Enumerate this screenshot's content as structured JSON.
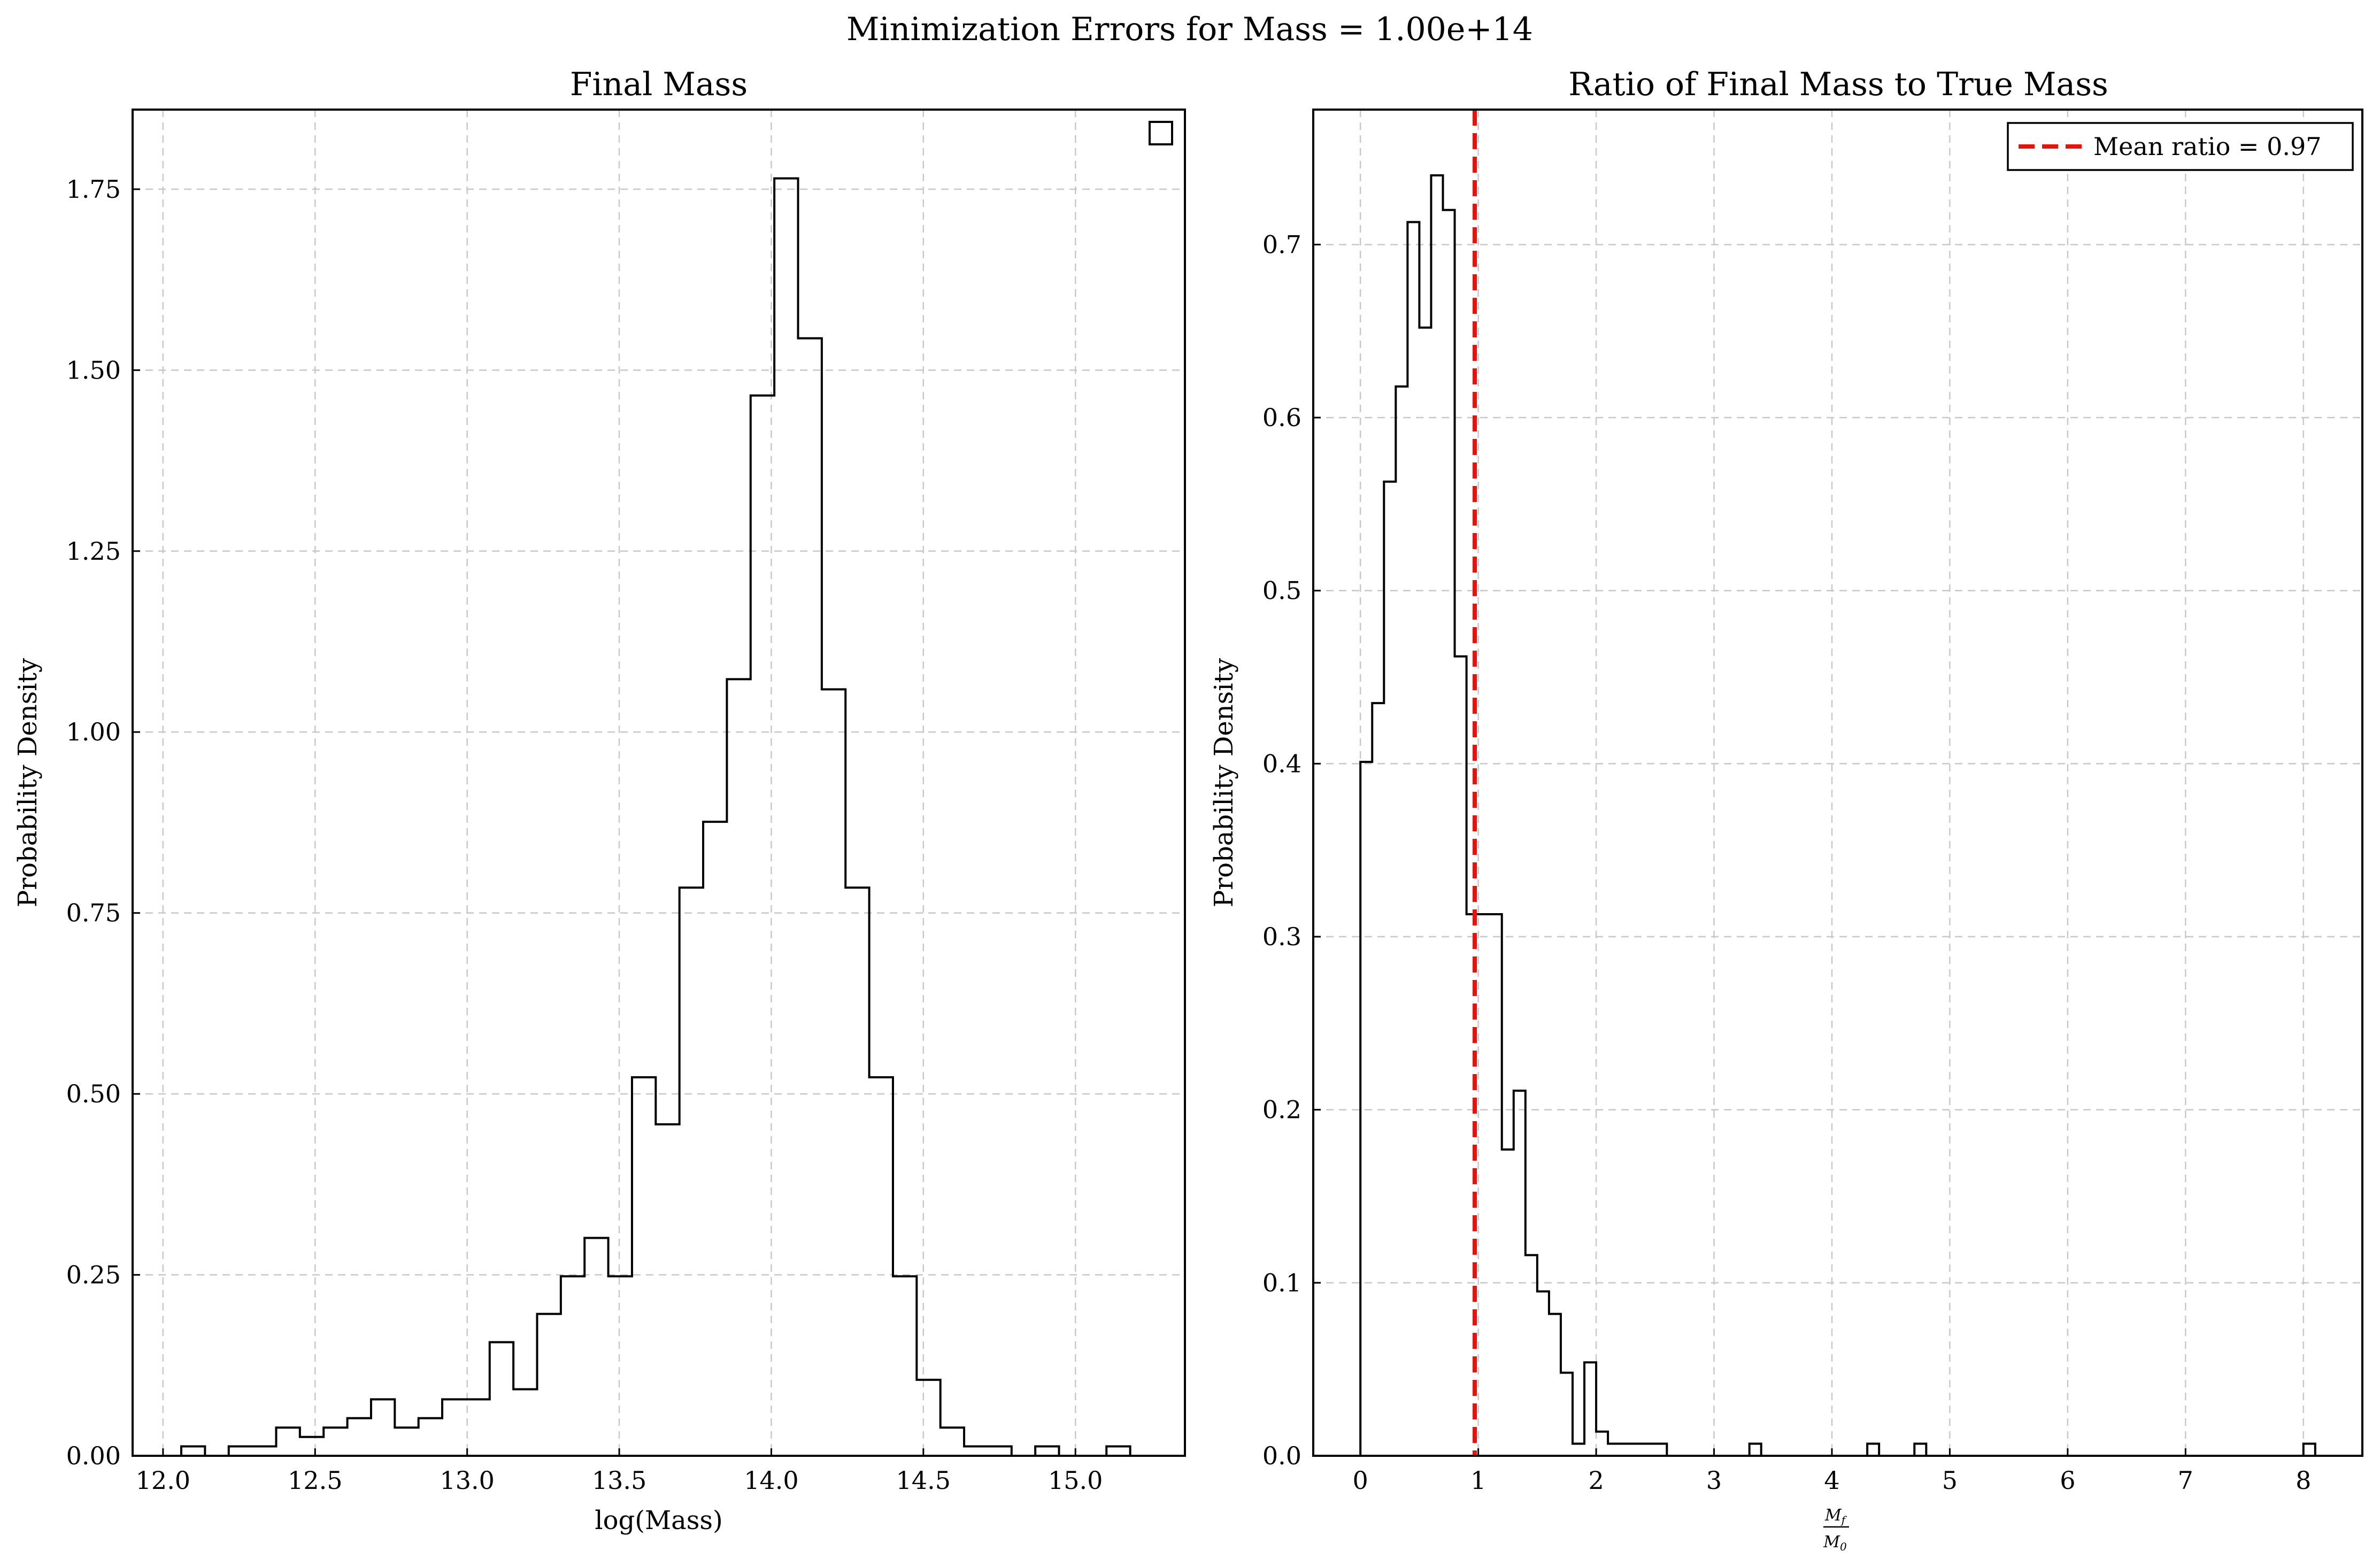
{
  "figure": {
    "suptitle": "Minimization Errors for Mass = 1.00e+14"
  },
  "chart_data": [
    {
      "type": "histogram",
      "title": "Final Mass",
      "xlabel": "log(Mass)",
      "ylabel": "Probability Density",
      "xlim": [
        11.9,
        15.36
      ],
      "ylim": [
        0,
        1.86
      ],
      "xticks": [
        "12.0",
        "12.5",
        "13.0",
        "13.5",
        "14.0",
        "14.5",
        "15.0"
      ],
      "yticks": [
        "0.00",
        "0.25",
        "0.50",
        "0.75",
        "1.00",
        "1.25",
        "1.50",
        "1.75"
      ],
      "grid": true,
      "legend_placement": "upper-right",
      "legend_entries": [],
      "bin_edges": [
        12.06,
        12.138,
        12.216,
        12.294,
        12.372,
        12.45,
        12.528,
        12.606,
        12.684,
        12.762,
        12.84,
        12.918,
        12.996,
        13.074,
        13.152,
        13.23,
        13.308,
        13.386,
        13.464,
        13.542,
        13.62,
        13.698,
        13.776,
        13.854,
        13.932,
        14.01,
        14.088,
        14.166,
        14.244,
        14.322,
        14.4,
        14.478,
        14.556,
        14.634,
        14.712,
        14.79,
        14.868,
        14.946,
        15.024,
        15.102,
        15.18
      ],
      "density": [
        0.013,
        0,
        0.013,
        0.013,
        0.039,
        0.026,
        0.039,
        0.052,
        0.078,
        0.039,
        0.052,
        0.078,
        0.078,
        0.157,
        0.092,
        0.196,
        0.248,
        0.301,
        0.248,
        0.523,
        0.458,
        0.785,
        0.876,
        1.073,
        1.465,
        1.765,
        1.544,
        1.059,
        0.785,
        0.523,
        0.248,
        0.105,
        0.039,
        0.013,
        0.013,
        0,
        0.013,
        0,
        0,
        0.013
      ]
    },
    {
      "type": "histogram",
      "title": "Ratio of Final Mass to True Mass",
      "xlabel_numerator": "M",
      "xlabel_numerator_sub": "f",
      "xlabel_denominator": "M",
      "xlabel_denominator_sub": "0",
      "ylabel": "Probability Density",
      "xlim": [
        -0.4,
        8.5
      ],
      "ylim": [
        0,
        0.778
      ],
      "xticks": [
        "0",
        "1",
        "2",
        "3",
        "4",
        "5",
        "6",
        "7",
        "8"
      ],
      "yticks": [
        "0.0",
        "0.1",
        "0.2",
        "0.3",
        "0.4",
        "0.5",
        "0.6",
        "0.7"
      ],
      "grid": true,
      "legend_placement": "upper-right",
      "legend_entries": [
        "Mean ratio = 0.97"
      ],
      "mean_ratio": 0.97,
      "bin_edges": [
        0.0,
        0.1,
        0.2,
        0.3,
        0.4,
        0.5,
        0.6,
        0.7,
        0.8,
        0.9,
        1.0,
        1.1,
        1.2,
        1.3,
        1.4,
        1.5,
        1.6,
        1.7,
        1.8,
        1.9,
        2.0,
        2.1,
        2.2,
        2.3,
        2.4,
        2.5,
        2.6,
        2.7,
        2.8,
        2.9,
        3.0,
        3.1,
        3.2,
        3.3,
        3.4,
        3.5,
        3.6,
        3.7,
        3.8,
        3.9,
        4.0,
        4.1,
        4.2,
        4.3,
        4.4,
        4.5,
        4.6,
        4.7,
        4.8,
        4.9,
        5.0,
        5.1,
        5.2,
        5.3,
        5.4,
        5.5,
        5.6,
        5.7,
        5.8,
        5.9,
        6.0,
        6.1,
        6.2,
        6.3,
        6.4,
        6.5,
        6.6,
        6.7,
        6.8,
        6.9,
        7.0,
        7.1,
        7.2,
        7.3,
        7.4,
        7.5,
        7.6,
        7.7,
        7.8,
        7.9,
        8.0,
        8.1
      ],
      "density": [
        0.401,
        0.435,
        0.563,
        0.618,
        0.713,
        0.652,
        0.74,
        0.72,
        0.462,
        0.313,
        0.313,
        0.313,
        0.177,
        0.211,
        0.116,
        0.095,
        0.082,
        0.048,
        0.007,
        0.054,
        0.014,
        0.007,
        0.007,
        0.007,
        0.007,
        0.007,
        0,
        0,
        0,
        0,
        0,
        0,
        0,
        0.007,
        0,
        0,
        0,
        0,
        0,
        0,
        0,
        0,
        0,
        0.007,
        0,
        0,
        0,
        0.007,
        0,
        0,
        0,
        0,
        0,
        0,
        0,
        0,
        0,
        0,
        0,
        0,
        0,
        0,
        0,
        0,
        0,
        0,
        0,
        0,
        0,
        0,
        0,
        0,
        0,
        0,
        0,
        0,
        0,
        0,
        0,
        0,
        0.007
      ],
      "mean_line_color": "#e8120c"
    }
  ]
}
